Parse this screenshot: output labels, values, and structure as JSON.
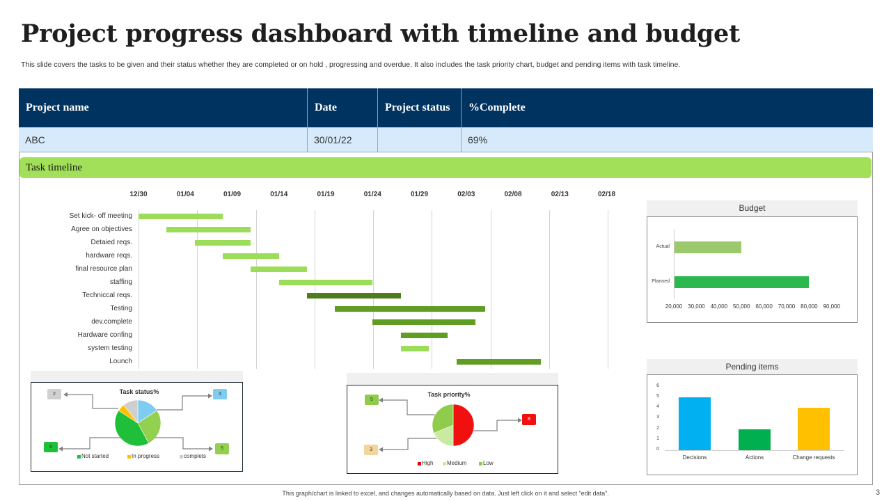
{
  "title": "Project progress dashboard with timeline and budget",
  "subtitle": "This slide covers the tasks to be given and their status  whether they are completed or on  hold , progressing and overdue. It also includes the task priority chart,  budget and pending items with task timeline.",
  "table": {
    "headers": [
      "Project name",
      "Date",
      "Project status",
      "%Complete"
    ],
    "row": [
      "ABC",
      "30/01/22",
      "",
      "69%"
    ]
  },
  "timeline_label": "Task timeline",
  "footer": "This graph/chart is linked to excel, and changes automatically based on data. Just left click on it and select “edit data”.",
  "page_number": "3",
  "colors": {
    "navy": "#003360",
    "light_blue_row": "#d6eafc",
    "timeline_green": "#a3e05a",
    "gantt_light": "#9bdc58",
    "gantt_dark": "#4f7d1e",
    "gantt_mid": "#5f9e22"
  },
  "chart_data": [
    {
      "type": "gantt",
      "x_ticks": [
        "12/30",
        "01/04",
        "01/09",
        "01/14",
        "01/19",
        "01/24",
        "01/29",
        "02/03",
        "02/08",
        "02/13",
        "02/18"
      ],
      "tasks": [
        {
          "name": "Set kick- off meeting",
          "start": "12/30",
          "end": "01/08",
          "shade": "light"
        },
        {
          "name": "Agree on objectives",
          "start": "01/02",
          "end": "01/11",
          "shade": "light"
        },
        {
          "name": "Detaied reqs.",
          "start": "01/05",
          "end": "01/11",
          "shade": "light"
        },
        {
          "name": "hardware reqs.",
          "start": "01/08",
          "end": "01/14",
          "shade": "light"
        },
        {
          "name": "final resource plan",
          "start": "01/11",
          "end": "01/17",
          "shade": "light"
        },
        {
          "name": "staffing",
          "start": "01/14",
          "end": "01/24",
          "shade": "light"
        },
        {
          "name": "Techniccal reqs.",
          "start": "01/17",
          "end": "01/27",
          "shade": "dark"
        },
        {
          "name": "Testing",
          "start": "01/20",
          "end": "02/05",
          "shade": "mid"
        },
        {
          "name": "dev.complete",
          "start": "01/24",
          "end": "02/04",
          "shade": "mid"
        },
        {
          "name": "Hardware confing",
          "start": "01/27",
          "end": "02/01",
          "shade": "mid"
        },
        {
          "name": "system testing",
          "start": "01/27",
          "end": "01/30",
          "shade": "light"
        },
        {
          "name": "Lounch",
          "start": "02/02",
          "end": "02/11",
          "shade": "mid"
        }
      ]
    },
    {
      "type": "bar",
      "orientation": "horizontal",
      "title": "Budget",
      "categories": [
        "Actual",
        "Planned"
      ],
      "values": [
        50000,
        80000
      ],
      "colors": [
        "#9cc96c",
        "#2bb84f"
      ],
      "xlim": [
        20000,
        90000
      ],
      "x_ticks": [
        "20,000",
        "30,000",
        "40,000",
        "50,000",
        "60,000",
        "70,000",
        "80,000",
        "90,000"
      ]
    },
    {
      "type": "bar",
      "title": "Pending items",
      "categories": [
        "Decisions",
        "Actions",
        "Change requests"
      ],
      "values": [
        5,
        2,
        4
      ],
      "colors": [
        "#00b0f0",
        "#00b050",
        "#ffc000"
      ],
      "ylim": [
        0,
        6
      ],
      "y_ticks": [
        "0",
        "1",
        "2",
        "3",
        "4",
        "5",
        "6"
      ]
    },
    {
      "type": "pie",
      "title": "Task status%",
      "slices": [
        {
          "value": 3,
          "color": "#7ecdf0"
        },
        {
          "value": 5,
          "color": "#92d050"
        },
        {
          "value": 8,
          "name": "Not started",
          "color": "#1fbf3a"
        },
        {
          "value": 1,
          "name": "In progress",
          "color": "#ffc000"
        },
        {
          "value": 2,
          "name": "complets",
          "color": "#cfcfcf"
        }
      ],
      "callouts": [
        "2",
        "3",
        "8",
        "5"
      ],
      "legend": [
        "Not started",
        "In progress",
        "complets"
      ],
      "legend_colors": [
        "#1fbf3a",
        "#ffc000",
        "#cfcfcf"
      ]
    },
    {
      "type": "pie",
      "title": "Task priority%",
      "slices": [
        {
          "value": 8,
          "name": "High",
          "color": "#f01010"
        },
        {
          "value": 3,
          "name": "Medium",
          "color": "#c9eaa0"
        },
        {
          "value": 5,
          "name": "Low",
          "color": "#8fcc4c"
        }
      ],
      "callouts": [
        "5",
        "3",
        "8"
      ],
      "legend": [
        "High",
        "Medium",
        "Low"
      ],
      "legend_colors": [
        "#e00000",
        "#c9eaa0",
        "#8fcc4c"
      ]
    }
  ]
}
